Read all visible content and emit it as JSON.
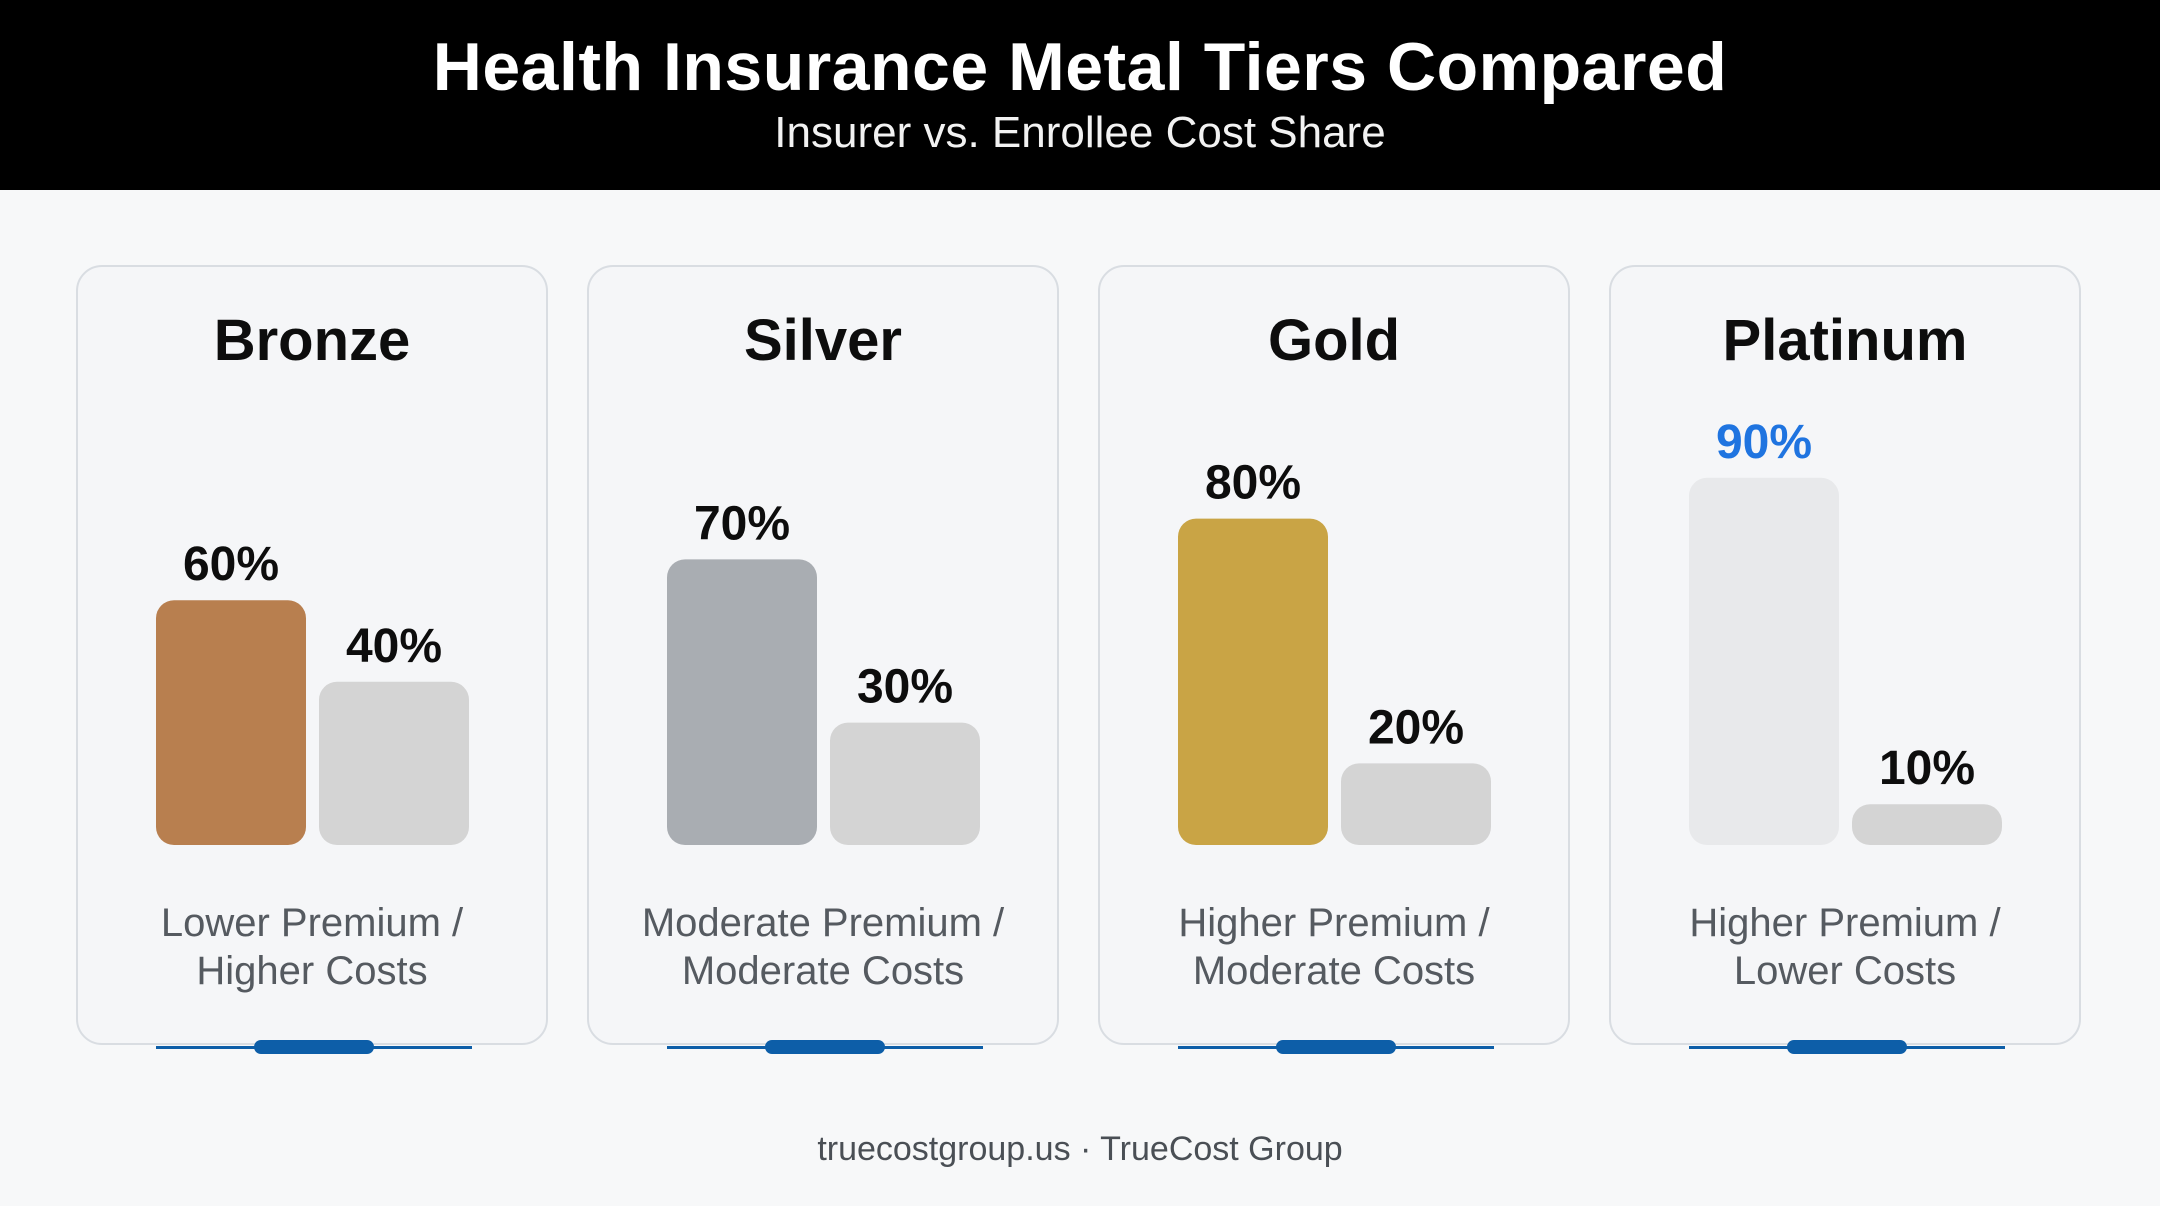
{
  "header": {
    "title": "Health Insurance Metal Tiers Compared",
    "subtitle": "Insurer vs. Enrollee Cost Share"
  },
  "chart_data": {
    "type": "bar",
    "ylim": [
      0,
      100
    ],
    "categories": [
      "Insurer",
      "Enrollee"
    ],
    "tiers": [
      {
        "name": "Bronze",
        "insurer": 60,
        "enrollee": 40,
        "insurer_label": "60%",
        "enrollee_label": "40%",
        "desc_line1": "Lower Premium /",
        "desc_line2": "Higher Costs",
        "insurer_color": "#b87f4f",
        "insurer_label_color": "#0d0d0d"
      },
      {
        "name": "Silver",
        "insurer": 70,
        "enrollee": 30,
        "insurer_label": "70%",
        "enrollee_label": "30%",
        "desc_line1": "Moderate Premium /",
        "desc_line2": "Moderate Costs",
        "insurer_color": "#a9adb2",
        "insurer_label_color": "#0d0d0d"
      },
      {
        "name": "Gold",
        "insurer": 80,
        "enrollee": 20,
        "insurer_label": "80%",
        "enrollee_label": "20%",
        "desc_line1": "Higher Premium /",
        "desc_line2": "Moderate Costs",
        "insurer_color": "#c9a445",
        "insurer_label_color": "#0d0d0d"
      },
      {
        "name": "Platinum",
        "insurer": 90,
        "enrollee": 10,
        "insurer_label": "90%",
        "enrollee_label": "10%",
        "desc_line1": "Higher Premium /",
        "desc_line2": "Lower Costs",
        "insurer_color": "#e8e9eb",
        "insurer_label_color": "#1f74e0"
      }
    ],
    "enrollee_color": "#d4d4d4"
  },
  "footer": {
    "text": "truecostgroup.us · TrueCost Group"
  }
}
